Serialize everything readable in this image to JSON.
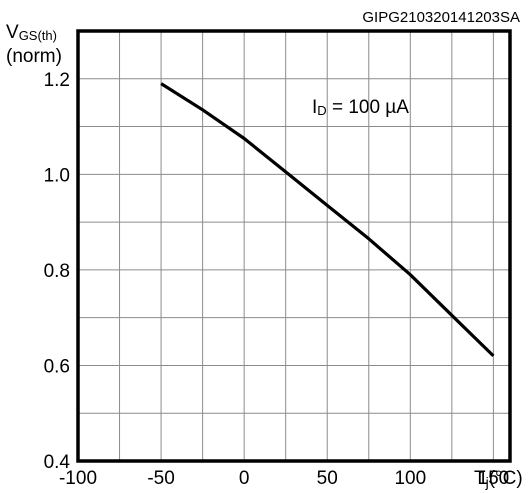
{
  "chart_data": {
    "type": "line",
    "figure_code": "GIPG210320141203SA",
    "ylabel_main": "V",
    "ylabel_sub": "GS(th)",
    "ylabel_unit": "(norm)",
    "xlabel_main": "T",
    "xlabel_sub": "j",
    "xlabel_unit": "(°C)",
    "annotation_main": "I",
    "annotation_sub": "D",
    "annotation_rest": " = 100 µA",
    "xlim": [
      -100,
      160
    ],
    "ylim": [
      0.4,
      1.3
    ],
    "x_ticks": [
      -100,
      -50,
      0,
      50,
      100,
      150
    ],
    "x_tick_labels": [
      "-100",
      "-50",
      "0",
      "50",
      "100",
      "150"
    ],
    "y_ticks": [
      0.4,
      0.6,
      0.8,
      1.0,
      1.2
    ],
    "y_tick_labels": [
      "0.4",
      "0.6",
      "0.8",
      "1.0",
      "1.2"
    ],
    "grid": true,
    "series": [
      {
        "x": [
          -50,
          -25,
          0,
          25,
          50,
          75,
          100,
          125,
          150
        ],
        "y": [
          1.19,
          1.135,
          1.075,
          1.005,
          0.935,
          0.865,
          0.79,
          0.705,
          0.62
        ]
      }
    ]
  }
}
